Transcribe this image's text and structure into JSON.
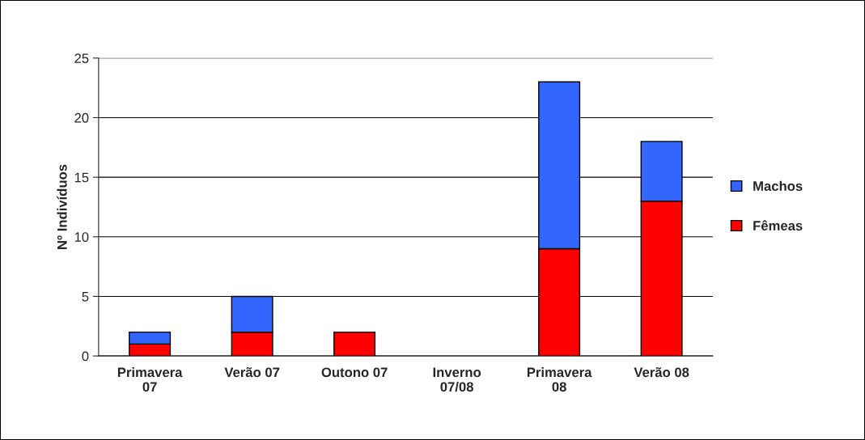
{
  "chart_data": {
    "type": "bar",
    "stacked": true,
    "ylabel": "Nº Indivíduos",
    "categories": [
      "Primavera\n07",
      "Verão 07",
      "Outono 07",
      "Inverno\n07/08",
      "Primavera\n08",
      "Verão 08"
    ],
    "series": [
      {
        "name": "Fêmeas",
        "color": "#ff0000",
        "values": [
          1,
          2,
          2,
          0,
          9,
          13
        ]
      },
      {
        "name": "Machos",
        "color": "#3366ff",
        "values": [
          1,
          3,
          0,
          0,
          14,
          5
        ]
      }
    ],
    "ylim": [
      0,
      25
    ],
    "yticks": [
      0,
      5,
      10,
      15,
      20,
      25
    ],
    "grid": "y",
    "legend": "right"
  }
}
